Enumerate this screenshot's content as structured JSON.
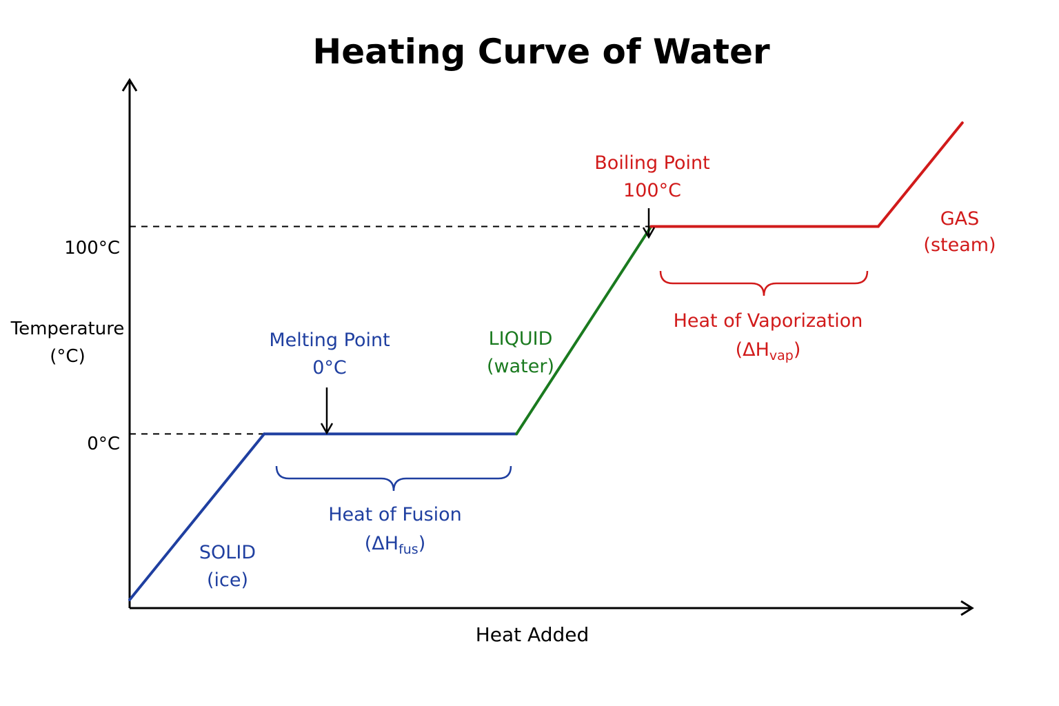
{
  "chart_data": {
    "type": "line",
    "title": "Heating Curve of Water",
    "xlabel": "Heat Added",
    "ylabel_line1": "Temperature",
    "ylabel_line2": "(°C)",
    "y_ticks": [
      {
        "value": 0,
        "label": "0°C"
      },
      {
        "value": 100,
        "label": "100°C"
      }
    ],
    "x_range": [
      0,
      10
    ],
    "y_range": [
      -84,
      170
    ],
    "grid": false,
    "colors": {
      "solid": "#1f3fa0",
      "liquid": "#1a7a1f",
      "gas": "#d11a1a",
      "axis": "#000000"
    },
    "segments": [
      {
        "phase": "solid",
        "points": [
          [
            0,
            -80
          ],
          [
            1.6,
            0
          ]
        ]
      },
      {
        "phase": "solid",
        "points": [
          [
            1.6,
            0
          ],
          [
            4.6,
            0
          ]
        ]
      },
      {
        "phase": "liquid",
        "points": [
          [
            4.6,
            0
          ],
          [
            6.2,
            100
          ]
        ]
      },
      {
        "phase": "gas",
        "points": [
          [
            6.2,
            100
          ],
          [
            8.9,
            100
          ]
        ]
      },
      {
        "phase": "gas",
        "points": [
          [
            8.9,
            100
          ],
          [
            9.9,
            150
          ]
        ]
      }
    ],
    "annotations": {
      "solid": {
        "line1": "SOLID",
        "line2": "(ice)"
      },
      "liquid": {
        "line1": "LIQUID",
        "line2": "(water)"
      },
      "gas": {
        "line1": "GAS",
        "line2": "(steam)"
      },
      "melting_point": {
        "line1": "Melting Point",
        "line2": "0°C"
      },
      "boiling_point": {
        "line1": "Boiling Point",
        "line2": "100°C"
      },
      "heat_of_fusion": {
        "line1": "Heat of Fusion",
        "open": "(ΔH",
        "sub": "fus",
        "close": ")"
      },
      "heat_of_vaporization": {
        "line1": "Heat of Vaporization",
        "open": "(ΔH",
        "sub": "vap",
        "close": ")"
      }
    }
  }
}
